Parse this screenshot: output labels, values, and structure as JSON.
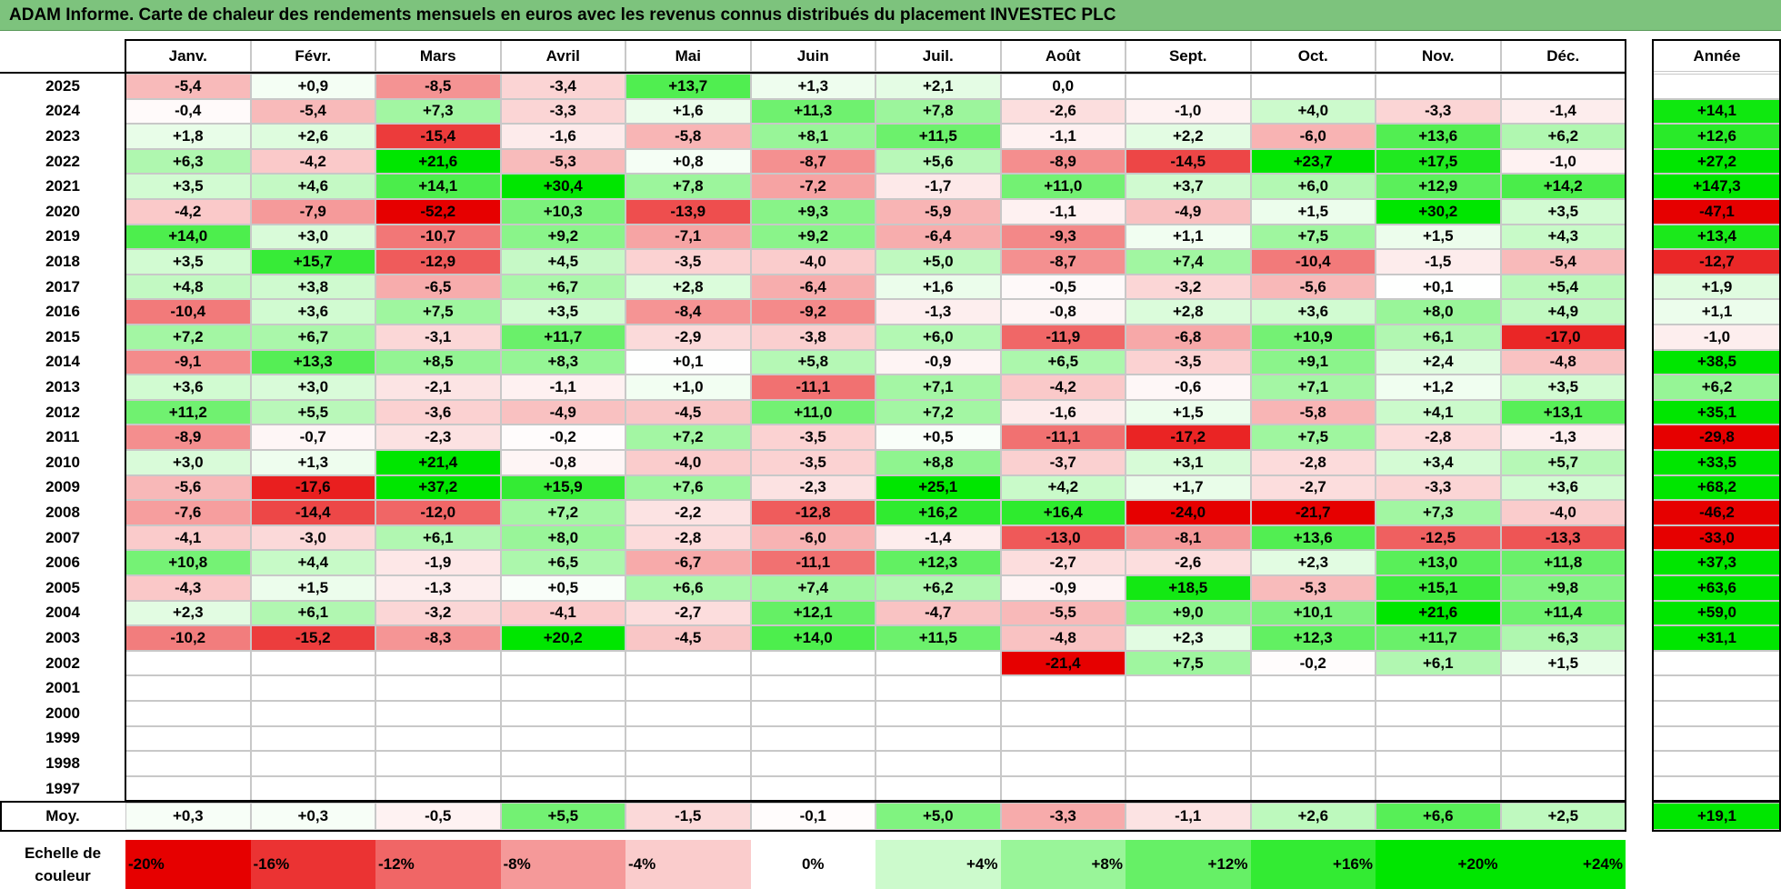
{
  "title": "ADAM Informe. Carte de chaleur des rendements mensuels en euros avec les revenus connus distribués du placement INVESTEC PLC",
  "chart_data": {
    "type": "heatmap",
    "months": [
      "Janv.",
      "Févr.",
      "Mars",
      "Avril",
      "Mai",
      "Juin",
      "Juil.",
      "Août",
      "Sept.",
      "Oct.",
      "Nov.",
      "Déc."
    ],
    "annual_header": "Année",
    "rows": [
      {
        "year": "2025",
        "values": [
          "-5,4",
          "+0,9",
          "-8,5",
          "-3,4",
          "+13,7",
          "+1,3",
          "+2,1",
          "0,0",
          "",
          "",
          "",
          ""
        ],
        "annual": ""
      },
      {
        "year": "2024",
        "values": [
          "-0,4",
          "-5,4",
          "+7,3",
          "-3,3",
          "+1,6",
          "+11,3",
          "+7,8",
          "-2,6",
          "-1,0",
          "+4,0",
          "-3,3",
          "-1,4"
        ],
        "annual": "+14,1"
      },
      {
        "year": "2023",
        "values": [
          "+1,8",
          "+2,6",
          "-15,4",
          "-1,6",
          "-5,8",
          "+8,1",
          "+11,5",
          "-1,1",
          "+2,2",
          "-6,0",
          "+13,6",
          "+6,2"
        ],
        "annual": "+12,6"
      },
      {
        "year": "2022",
        "values": [
          "+6,3",
          "-4,2",
          "+21,6",
          "-5,3",
          "+0,8",
          "-8,7",
          "+5,6",
          "-8,9",
          "-14,5",
          "+23,7",
          "+17,5",
          "-1,0"
        ],
        "annual": "+27,2"
      },
      {
        "year": "2021",
        "values": [
          "+3,5",
          "+4,6",
          "+14,1",
          "+30,4",
          "+7,8",
          "-7,2",
          "-1,7",
          "+11,0",
          "+3,7",
          "+6,0",
          "+12,9",
          "+14,2"
        ],
        "annual": "+147,3"
      },
      {
        "year": "2020",
        "values": [
          "-4,2",
          "-7,9",
          "-52,2",
          "+10,3",
          "-13,9",
          "+9,3",
          "-5,9",
          "-1,1",
          "-4,9",
          "+1,5",
          "+30,2",
          "+3,5"
        ],
        "annual": "-47,1"
      },
      {
        "year": "2019",
        "values": [
          "+14,0",
          "+3,0",
          "-10,7",
          "+9,2",
          "-7,1",
          "+9,2",
          "-6,4",
          "-9,3",
          "+1,1",
          "+7,5",
          "+1,5",
          "+4,3"
        ],
        "annual": "+13,4"
      },
      {
        "year": "2018",
        "values": [
          "+3,5",
          "+15,7",
          "-12,9",
          "+4,5",
          "-3,5",
          "-4,0",
          "+5,0",
          "-8,7",
          "+7,4",
          "-10,4",
          "-1,5",
          "-5,4"
        ],
        "annual": "-12,7"
      },
      {
        "year": "2017",
        "values": [
          "+4,8",
          "+3,8",
          "-6,5",
          "+6,7",
          "+2,8",
          "-6,4",
          "+1,6",
          "-0,5",
          "-3,2",
          "-5,6",
          "+0,1",
          "+5,4"
        ],
        "annual": "+1,9"
      },
      {
        "year": "2016",
        "values": [
          "-10,4",
          "+3,6",
          "+7,5",
          "+3,5",
          "-8,4",
          "-9,2",
          "-1,3",
          "-0,8",
          "+2,8",
          "+3,6",
          "+8,0",
          "+4,9"
        ],
        "annual": "+1,1"
      },
      {
        "year": "2015",
        "values": [
          "+7,2",
          "+6,7",
          "-3,1",
          "+11,7",
          "-2,9",
          "-3,8",
          "+6,0",
          "-11,9",
          "-6,8",
          "+10,9",
          "+6,1",
          "-17,0"
        ],
        "annual": "-1,0"
      },
      {
        "year": "2014",
        "values": [
          "-9,1",
          "+13,3",
          "+8,5",
          "+8,3",
          "+0,1",
          "+5,8",
          "-0,9",
          "+6,5",
          "-3,5",
          "+9,1",
          "+2,4",
          "-4,8"
        ],
        "annual": "+38,5"
      },
      {
        "year": "2013",
        "values": [
          "+3,6",
          "+3,0",
          "-2,1",
          "-1,1",
          "+1,0",
          "-11,1",
          "+7,1",
          "-4,2",
          "-0,6",
          "+7,1",
          "+1,2",
          "+3,5"
        ],
        "annual": "+6,2"
      },
      {
        "year": "2012",
        "values": [
          "+11,2",
          "+5,5",
          "-3,6",
          "-4,9",
          "-4,5",
          "+11,0",
          "+7,2",
          "-1,6",
          "+1,5",
          "-5,8",
          "+4,1",
          "+13,1"
        ],
        "annual": "+35,1"
      },
      {
        "year": "2011",
        "values": [
          "-8,9",
          "-0,7",
          "-2,3",
          "-0,2",
          "+7,2",
          "-3,5",
          "+0,5",
          "-11,1",
          "-17,2",
          "+7,5",
          "-2,8",
          "-1,3"
        ],
        "annual": "-29,8"
      },
      {
        "year": "2010",
        "values": [
          "+3,0",
          "+1,3",
          "+21,4",
          "-0,8",
          "-4,0",
          "-3,5",
          "+8,8",
          "-3,7",
          "+3,1",
          "-2,8",
          "+3,4",
          "+5,7"
        ],
        "annual": "+33,5"
      },
      {
        "year": "2009",
        "values": [
          "-5,6",
          "-17,6",
          "+37,2",
          "+15,9",
          "+7,6",
          "-2,3",
          "+25,1",
          "+4,2",
          "+1,7",
          "-2,7",
          "-3,3",
          "+3,6"
        ],
        "annual": "+68,2"
      },
      {
        "year": "2008",
        "values": [
          "-7,6",
          "-14,4",
          "-12,0",
          "+7,2",
          "-2,2",
          "-12,8",
          "+16,2",
          "+16,4",
          "-24,0",
          "-21,7",
          "+7,3",
          "-4,0"
        ],
        "annual": "-46,2"
      },
      {
        "year": "2007",
        "values": [
          "-4,1",
          "-3,0",
          "+6,1",
          "+8,0",
          "-2,8",
          "-6,0",
          "-1,4",
          "-13,0",
          "-8,1",
          "+13,6",
          "-12,5",
          "-13,3"
        ],
        "annual": "-33,0"
      },
      {
        "year": "2006",
        "values": [
          "+10,8",
          "+4,4",
          "-1,9",
          "+6,5",
          "-6,7",
          "-11,1",
          "+12,3",
          "-2,7",
          "-2,6",
          "+2,3",
          "+13,0",
          "+11,8"
        ],
        "annual": "+37,3"
      },
      {
        "year": "2005",
        "values": [
          "-4,3",
          "+1,5",
          "-1,3",
          "+0,5",
          "+6,6",
          "+7,4",
          "+6,2",
          "-0,9",
          "+18,5",
          "-5,3",
          "+15,1",
          "+9,8"
        ],
        "annual": "+63,6"
      },
      {
        "year": "2004",
        "values": [
          "+2,3",
          "+6,1",
          "-3,2",
          "-4,1",
          "-2,7",
          "+12,1",
          "-4,7",
          "-5,5",
          "+9,0",
          "+10,1",
          "+21,6",
          "+11,4"
        ],
        "annual": "+59,0"
      },
      {
        "year": "2003",
        "values": [
          "-10,2",
          "-15,2",
          "-8,3",
          "+20,2",
          "-4,5",
          "+14,0",
          "+11,5",
          "-4,8",
          "+2,3",
          "+12,3",
          "+11,7",
          "+6,3"
        ],
        "annual": "+31,1"
      },
      {
        "year": "2002",
        "values": [
          "",
          "",
          "",
          "",
          "",
          "",
          "",
          "-21,4",
          "+7,5",
          "-0,2",
          "+6,1",
          "+1,5"
        ],
        "annual": ""
      },
      {
        "year": "2001",
        "values": [
          "",
          "",
          "",
          "",
          "",
          "",
          "",
          "",
          "",
          "",
          "",
          ""
        ],
        "annual": ""
      },
      {
        "year": "2000",
        "values": [
          "",
          "",
          "",
          "",
          "",
          "",
          "",
          "",
          "",
          "",
          "",
          ""
        ],
        "annual": ""
      },
      {
        "year": "1999",
        "values": [
          "",
          "",
          "",
          "",
          "",
          "",
          "",
          "",
          "",
          "",
          "",
          ""
        ],
        "annual": ""
      },
      {
        "year": "1998",
        "values": [
          "",
          "",
          "",
          "",
          "",
          "",
          "",
          "",
          "",
          "",
          "",
          ""
        ],
        "annual": ""
      },
      {
        "year": "1997",
        "values": [
          "",
          "",
          "",
          "",
          "",
          "",
          "",
          "",
          "",
          "",
          "",
          ""
        ],
        "annual": ""
      }
    ],
    "average": {
      "label": "Moy.",
      "values": [
        "+0,3",
        "+0,3",
        "-0,5",
        "+5,5",
        "-1,5",
        "-0,1",
        "+5,0",
        "-3,3",
        "-1,1",
        "+2,6",
        "+6,6",
        "+2,5"
      ],
      "annual": "+19,1"
    },
    "scale": {
      "label": "Echelle de couleur",
      "items": [
        "-20%",
        "-16%",
        "-12%",
        "-8%",
        "-4%",
        "0%",
        "+4%",
        "+8%",
        "+12%",
        "+16%",
        "+20%",
        "+24%"
      ]
    }
  },
  "colors": {
    "title_bg": "#7dc37d",
    "red_max": "#e60000",
    "green_max": "#00e600",
    "neutral": "#ffffff"
  }
}
